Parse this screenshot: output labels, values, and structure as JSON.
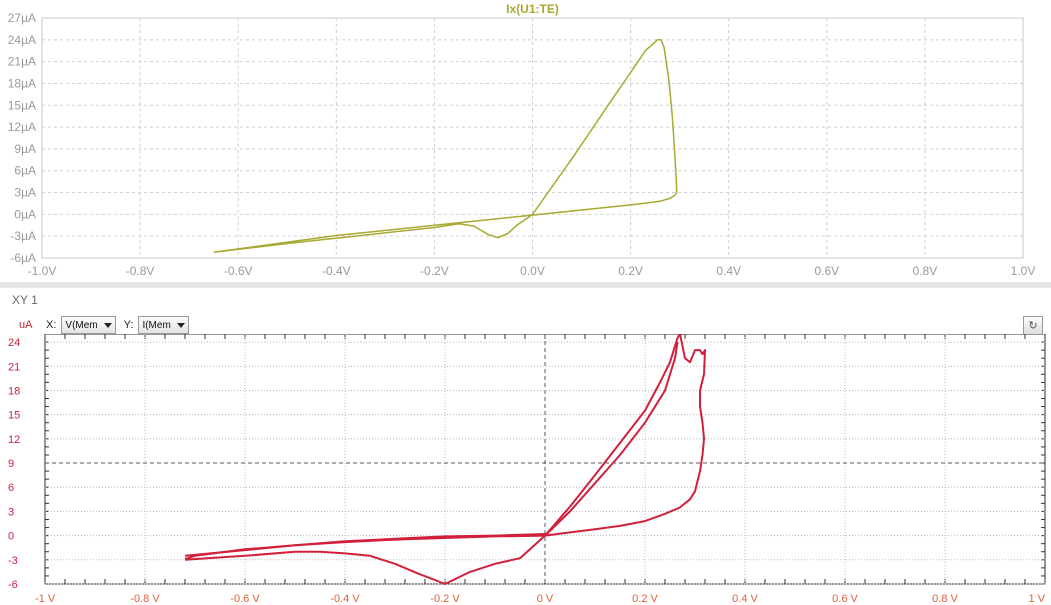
{
  "chart_data": [
    {
      "type": "line",
      "title": "Ix(U1:TE)",
      "xlabel": "",
      "ylabel": "",
      "xlim": [
        -1.0,
        1.0
      ],
      "ylim": [
        -6,
        27
      ],
      "x_ticks": [
        -1.0,
        -0.8,
        -0.6,
        -0.4,
        -0.2,
        0.0,
        0.2,
        0.4,
        0.6,
        0.8,
        1.0
      ],
      "x_tick_labels": [
        "-1.0V",
        "-0.8V",
        "-0.6V",
        "-0.4V",
        "-0.2V",
        "0.0V",
        "0.2V",
        "0.4V",
        "0.6V",
        "0.8V",
        "1.0V"
      ],
      "y_ticks": [
        -6,
        -3,
        0,
        3,
        6,
        9,
        12,
        15,
        18,
        21,
        24,
        27
      ],
      "y_tick_labels": [
        "-6µA",
        "-3µA",
        "0µA",
        "3µA",
        "6µA",
        "9µA",
        "12µA",
        "15µA",
        "18µA",
        "21µA",
        "24µA",
        "27µA"
      ],
      "grid": true,
      "series": [
        {
          "name": "Ix(U1:TE)",
          "color": "#a8a832",
          "x": [
            -0.65,
            -0.5,
            -0.35,
            -0.2,
            -0.15,
            -0.12,
            -0.09,
            -0.07,
            -0.05,
            -0.03,
            -0.01,
            0.0,
            0.04,
            0.08,
            0.12,
            0.16,
            0.2,
            0.23,
            0.255,
            0.262,
            0.268,
            0.278,
            0.285,
            0.29,
            0.293,
            0.294,
            0.293,
            0.29,
            0.28,
            0.26,
            0.2,
            0.1,
            0.0,
            -0.1,
            -0.2,
            -0.4,
            -0.65
          ],
          "y": [
            -5.2,
            -4.0,
            -2.9,
            -1.8,
            -1.3,
            -1.6,
            -2.8,
            -3.2,
            -2.6,
            -1.4,
            -0.5,
            0.0,
            3.8,
            7.6,
            11.6,
            15.6,
            19.5,
            22.5,
            24.0,
            24.0,
            23.0,
            18.5,
            13.5,
            8.5,
            5.0,
            3.2,
            2.9,
            2.6,
            2.2,
            1.8,
            1.3,
            0.6,
            -0.1,
            -0.8,
            -1.5,
            -2.9,
            -5.2
          ]
        }
      ]
    },
    {
      "type": "scatter",
      "title": "XY 1",
      "xlabel": "",
      "ylabel": "uA",
      "x_axis_selector": "V(Mem",
      "y_axis_selector": "I(Mem",
      "x_selector_label": "X:",
      "y_selector_label": "Y:",
      "xlim": [
        -1,
        1
      ],
      "ylim": [
        -6,
        25
      ],
      "x_ticks": [
        -1.0,
        -0.8,
        -0.6,
        -0.4,
        -0.2,
        0.0,
        0.2,
        0.4,
        0.6,
        0.8,
        1.0
      ],
      "x_tick_labels": [
        "-1 V",
        "-0.8 V",
        "-0.6 V",
        "-0.4 V",
        "-0.2 V",
        "0 V",
        "0.2 V",
        "0.4 V",
        "0.6 V",
        "0.8 V",
        "1 V"
      ],
      "y_ticks": [
        -6,
        -3,
        0,
        3,
        6,
        9,
        12,
        15,
        18,
        21,
        24
      ],
      "y_tick_labels": [
        "-6",
        "-3",
        "0",
        "3",
        "6",
        "9",
        "12",
        "15",
        "18",
        "21",
        "24"
      ],
      "grid": true,
      "series": [
        {
          "name": "",
          "color": "#d0203c",
          "x": [
            0.0,
            0.05,
            0.1,
            0.15,
            0.2,
            0.23,
            0.25,
            0.26,
            0.265,
            0.27,
            0.275
          ],
          "y": [
            0.0,
            3.6,
            7.5,
            11.5,
            15.5,
            19.0,
            21.5,
            23.5,
            24.5,
            25.0,
            25.0
          ]
        },
        {
          "name": "",
          "color": "#d0203c",
          "x": [
            0.0,
            0.05,
            0.1,
            0.15,
            0.2,
            0.24,
            0.26,
            0.265
          ],
          "y": [
            0.0,
            3.0,
            6.5,
            10.0,
            14.0,
            18.0,
            22.0,
            24.0
          ]
        },
        {
          "name": "",
          "color": "#d0203c",
          "x": [
            0.27,
            0.28,
            0.29,
            0.3,
            0.31,
            0.315,
            0.32,
            0.318,
            0.31,
            0.31,
            0.315,
            0.318,
            0.315,
            0.31,
            0.3,
            0.29,
            0.27,
            0.24,
            0.2,
            0.15,
            0.1,
            0.05,
            0.0
          ],
          "y": [
            25.0,
            22.0,
            21.5,
            23.0,
            23.0,
            22.5,
            23.0,
            20.0,
            18.0,
            16.0,
            14.0,
            12.0,
            10.0,
            8.0,
            5.5,
            4.5,
            3.5,
            2.7,
            1.8,
            1.2,
            0.8,
            0.4,
            0.0
          ]
        },
        {
          "name": "",
          "color": "#d0203c",
          "x": [
            0.0,
            -0.1,
            -0.2,
            -0.3,
            -0.4,
            -0.5,
            -0.6,
            -0.7,
            -0.72
          ],
          "y": [
            0.0,
            -0.1,
            -0.3,
            -0.5,
            -0.8,
            -1.2,
            -1.7,
            -2.5,
            -2.9
          ]
        },
        {
          "name": "",
          "color": "#d0203c",
          "x": [
            -0.72,
            -0.6,
            -0.5,
            -0.4,
            -0.3,
            -0.2,
            -0.1,
            0.0
          ],
          "y": [
            -2.5,
            -1.8,
            -1.2,
            -0.7,
            -0.4,
            -0.1,
            0.0,
            0.2
          ]
        },
        {
          "name": "",
          "color": "#d0203c",
          "x": [
            -0.72,
            -0.6,
            -0.5,
            -0.45,
            -0.4,
            -0.35,
            -0.3,
            -0.25,
            -0.22,
            -0.2,
            -0.15,
            -0.1,
            -0.05,
            0.0
          ],
          "y": [
            -3.0,
            -2.5,
            -2.0,
            -2.0,
            -2.2,
            -2.5,
            -3.5,
            -4.8,
            -5.5,
            -6.0,
            -4.5,
            -3.5,
            -2.8,
            0.0
          ]
        }
      ]
    }
  ],
  "bottom_panel": {
    "title": "XY 1",
    "x_label": "X:",
    "x_value": "V(Mem",
    "y_label": "Y:",
    "y_value": "I(Mem",
    "unit": "uA",
    "refresh_icon": "refresh-icon"
  }
}
